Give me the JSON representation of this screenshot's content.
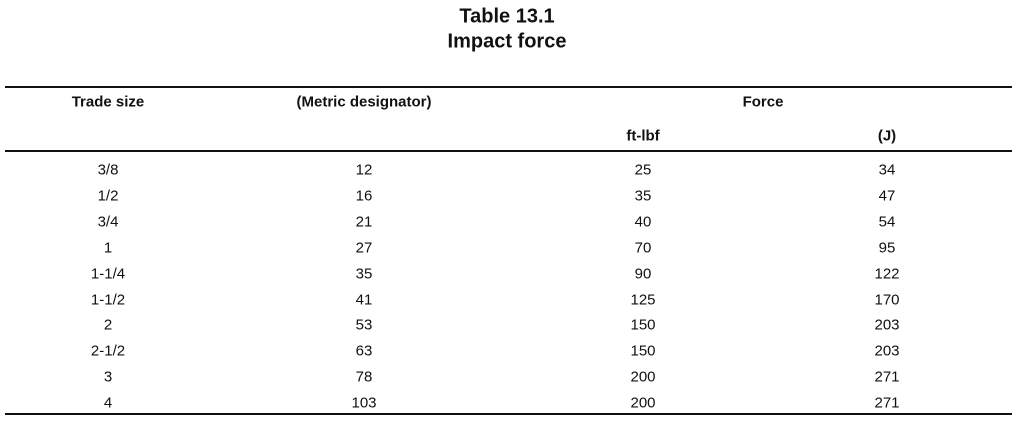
{
  "header": {
    "title": "Table 13.1",
    "subtitle": "Impact force"
  },
  "table": {
    "columns": [
      "Trade size",
      "(Metric designator)",
      "Force"
    ],
    "subcolumns": [
      "ft-lbf",
      "(J)"
    ],
    "rows": [
      [
        "3/8",
        12,
        25,
        34
      ],
      [
        "1/2",
        16,
        35,
        47
      ],
      [
        "3/4",
        21,
        40,
        54
      ],
      [
        "1",
        27,
        70,
        95
      ],
      [
        "1-1/4",
        35,
        90,
        122
      ],
      [
        "1-1/2",
        41,
        125,
        170
      ],
      [
        "2",
        53,
        150,
        203
      ],
      [
        "2-1/2",
        63,
        150,
        203
      ],
      [
        "3",
        78,
        200,
        271
      ],
      [
        "4",
        103,
        200,
        271
      ]
    ]
  }
}
